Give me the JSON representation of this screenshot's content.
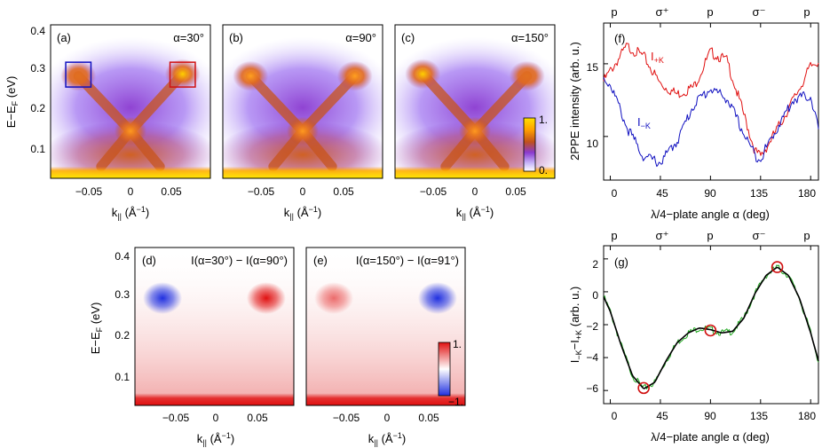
{
  "colors": {
    "intensity_map": [
      "#fff8d0",
      "#ffe000",
      "#ffa000",
      "#e06820",
      "#c0501c",
      "#b04880",
      "#8a3ad0",
      "#9a6cf0",
      "#d8cdfc",
      "#ffffff"
    ],
    "difference_map": {
      "negative": "#2030e0",
      "positive": "#e01010",
      "neutral": "#ffffff"
    },
    "box_left": "#1010c0",
    "box_right": "#d01010",
    "curve_plus": "#e01010",
    "curve_minus": "#1010c0",
    "curve_diff": "#22aa22",
    "fit": "#000000",
    "marker": "#d01010"
  },
  "chart_data": [
    {
      "panel": "(a)",
      "type": "heatmap",
      "annotation": "α=30°",
      "ylabel": "E−E",
      "ylabel_sub": "F",
      "ylabel_unit": " (eV)",
      "xlabel": "k",
      "xlabel_sub": "||",
      "xlabel_unit": " (Å",
      "xticks": [
        "−0.05",
        "0",
        "0.05"
      ],
      "yticks": [
        "0.1",
        "0.2",
        "0.3",
        "0.4"
      ],
      "xlim": [
        -0.095,
        0.095
      ],
      "ylim": [
        0.03,
        0.42
      ],
      "features": {
        "left_lobe": {
          "k": -0.062,
          "E": 0.29,
          "level": 0.55
        },
        "right_lobe": {
          "k": 0.062,
          "E": 0.295,
          "level": 0.95
        },
        "crossing": {
          "k": 0.0,
          "E": 0.15,
          "level": 0.8
        },
        "floor_E": 0.06
      },
      "boxes": [
        {
          "k0": -0.077,
          "k1": -0.047,
          "E0": 0.262,
          "E1": 0.325,
          "color": "blue"
        },
        {
          "k0": 0.047,
          "k1": 0.077,
          "E0": 0.262,
          "E1": 0.325,
          "color": "red"
        }
      ]
    },
    {
      "panel": "(b)",
      "type": "heatmap",
      "annotation": "α=90°",
      "xlabel": "k",
      "xlabel_sub": "||",
      "xlabel_unit": " (Å",
      "xticks": [
        "−0.05",
        "0",
        "0.05"
      ],
      "xlim": [
        -0.095,
        0.095
      ],
      "ylim": [
        0.03,
        0.42
      ],
      "features": {
        "left_lobe": {
          "k": -0.062,
          "E": 0.29,
          "level": 0.75
        },
        "right_lobe": {
          "k": 0.062,
          "E": 0.29,
          "level": 0.75
        },
        "crossing": {
          "k": 0.0,
          "E": 0.15,
          "level": 0.8
        },
        "floor_E": 0.06
      }
    },
    {
      "panel": "(c)",
      "type": "heatmap",
      "annotation": "α=150°",
      "xlabel": "k",
      "xlabel_sub": "||",
      "xlabel_unit": " (Å",
      "xticks": [
        "−0.05",
        "0",
        "0.05"
      ],
      "xlim": [
        -0.095,
        0.095
      ],
      "ylim": [
        0.03,
        0.42
      ],
      "features": {
        "left_lobe": {
          "k": -0.062,
          "E": 0.295,
          "level": 0.95
        },
        "right_lobe": {
          "k": 0.062,
          "E": 0.29,
          "level": 0.55
        },
        "crossing": {
          "k": 0.0,
          "E": 0.15,
          "level": 0.8
        },
        "floor_E": 0.06
      },
      "colorbar": {
        "max_label": "1.",
        "min_label": "0."
      }
    },
    {
      "panel": "(d)",
      "type": "heatmap",
      "annotation": "I(α=30°) − I(α=90°)",
      "ylabel": "E−E",
      "ylabel_sub": "F",
      "ylabel_unit": " (eV)",
      "xlabel": "k",
      "xlabel_sub": "||",
      "xlabel_unit": " (Å",
      "xticks": [
        "−0.05",
        "0",
        "0.05"
      ],
      "yticks": [
        "0.1",
        "0.2",
        "0.3",
        "0.4"
      ],
      "xlim": [
        -0.095,
        0.095
      ],
      "ylim": [
        0.03,
        0.42
      ],
      "features": {
        "left_lobe": {
          "k": -0.062,
          "E": 0.295,
          "sign": -1
        },
        "right_lobe": {
          "k": 0.062,
          "E": 0.295,
          "sign": 1
        },
        "floor_E": 0.06
      }
    },
    {
      "panel": "(e)",
      "type": "heatmap",
      "annotation": "I(α=150°) − I(α=91°)",
      "xlabel": "k",
      "xlabel_sub": "||",
      "xlabel_unit": " (Å",
      "xticks": [
        "−0.05",
        "0",
        "0.05"
      ],
      "xlim": [
        -0.095,
        0.095
      ],
      "ylim": [
        0.03,
        0.42
      ],
      "features": {
        "left_lobe": {
          "k": -0.062,
          "E": 0.295,
          "sign": 0.6
        },
        "right_lobe": {
          "k": 0.062,
          "E": 0.295,
          "sign": -1
        },
        "floor_E": 0.06
      },
      "colorbar": {
        "max_label": "1.",
        "min_label": "−1."
      }
    },
    {
      "panel": "(f)",
      "type": "line",
      "xlabel": "λ/4−plate angle α (deg)",
      "ylabel": "2PPE intensity (arb. u.)",
      "xticks": [
        "0",
        "45",
        "90",
        "135",
        "180"
      ],
      "yticks": [
        "10",
        "15"
      ],
      "top_labels": [
        "p",
        "σ⁺",
        "p",
        "σ⁻",
        "p"
      ],
      "top_positions": [
        0,
        45,
        90,
        135,
        180
      ],
      "xlim": [
        -6,
        187
      ],
      "ylim": [
        7.0,
        17.8
      ],
      "series": [
        {
          "name": "I",
          "sub": "+K",
          "color": "red",
          "x": [
            -6,
            0,
            15,
            30,
            45,
            60,
            75,
            90,
            105,
            120,
            130,
            135,
            150,
            165,
            180,
            187
          ],
          "values": [
            13.8,
            14.5,
            16.2,
            15.5,
            13.6,
            12.9,
            13.4,
            15.8,
            15.2,
            11.5,
            9.0,
            8.6,
            10.5,
            12.6,
            14.8,
            15.2
          ]
        },
        {
          "name": "I",
          "sub": "−K",
          "color": "blue",
          "x": [
            -6,
            0,
            15,
            30,
            45,
            60,
            75,
            90,
            105,
            120,
            130,
            135,
            150,
            165,
            180,
            187
          ],
          "values": [
            14.0,
            13.6,
            10.6,
            8.6,
            8.2,
            9.7,
            12.2,
            13.3,
            12.6,
            10.2,
            8.7,
            8.5,
            10.6,
            12.6,
            12.8,
            10.5
          ]
        }
      ]
    },
    {
      "panel": "(g)",
      "type": "line",
      "xlabel": "λ/4−plate angle α (deg)",
      "ylabel": "I−K−I+K (arb. u.)",
      "ylabel_parts": [
        "I",
        "−K",
        "−I",
        "+K",
        " (arb. u.)"
      ],
      "xticks": [
        "0",
        "45",
        "90",
        "135",
        "180"
      ],
      "yticks": [
        "−6",
        "−4",
        "−2",
        "0",
        "2"
      ],
      "top_labels": [
        "p",
        "σ⁺",
        "p",
        "σ⁻",
        "p"
      ],
      "top_positions": [
        0,
        45,
        90,
        135,
        180
      ],
      "xlim": [
        -6,
        187
      ],
      "ylim": [
        -6.8,
        2.8
      ],
      "series": [
        {
          "name": "",
          "color": "green",
          "x": [
            -6,
            0,
            10,
            20,
            30,
            40,
            50,
            60,
            70,
            80,
            90,
            100,
            110,
            120,
            130,
            140,
            150,
            160,
            170,
            180,
            187
          ],
          "values": [
            -0.3,
            -1.2,
            -3.3,
            -5.1,
            -5.9,
            -5.5,
            -4.2,
            -3.1,
            -2.5,
            -2.2,
            -2.3,
            -2.5,
            -2.4,
            -1.6,
            -0.1,
            1.0,
            1.5,
            1.0,
            -0.4,
            -2.5,
            -4.2
          ]
        },
        {
          "name": "",
          "color": "black",
          "x": [
            -6,
            0,
            10,
            20,
            30,
            40,
            50,
            60,
            70,
            80,
            90,
            100,
            110,
            120,
            130,
            140,
            150,
            160,
            170,
            180,
            187
          ],
          "values": [
            -0.3,
            -1.2,
            -3.3,
            -5.1,
            -5.9,
            -5.5,
            -4.2,
            -3.1,
            -2.5,
            -2.2,
            -2.3,
            -2.5,
            -2.4,
            -1.6,
            -0.1,
            1.0,
            1.5,
            1.0,
            -0.4,
            -2.5,
            -4.2
          ]
        }
      ],
      "markers": [
        {
          "x": 30,
          "y": -5.85
        },
        {
          "x": 90,
          "y": -2.35
        },
        {
          "x": 150,
          "y": 1.5
        }
      ]
    }
  ]
}
